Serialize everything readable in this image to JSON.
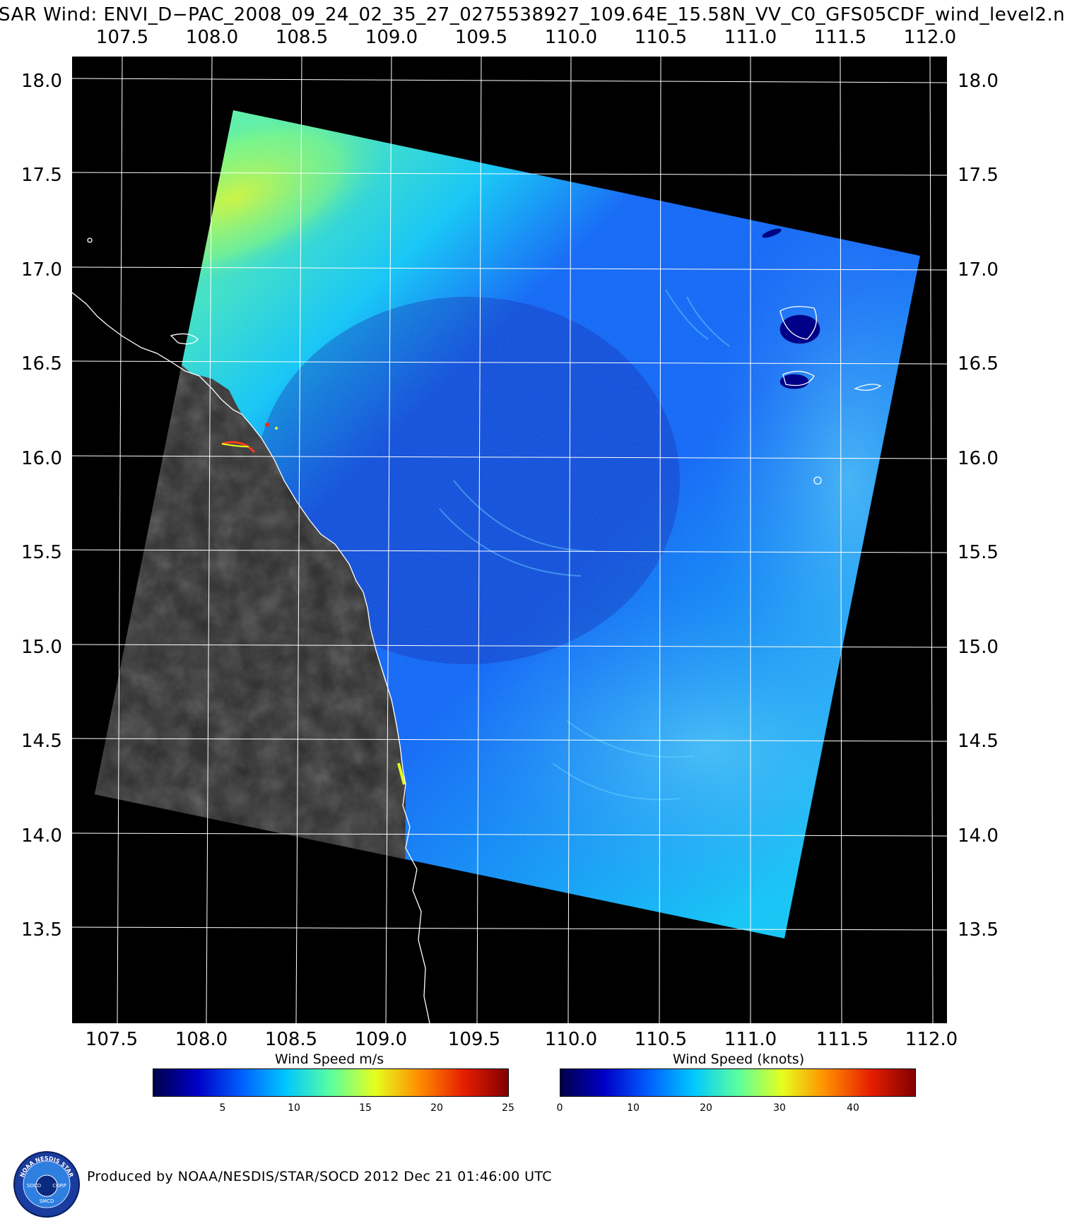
{
  "title": "SAR Wind: ENVI_D−PAC_2008_09_24_02_35_27_0275538927_109.64E_15.58N_VV_C0_GFS05CDF_wind_level2.n",
  "axes": {
    "lon_ticks": [
      "107.5",
      "108.0",
      "108.5",
      "109.0",
      "109.5",
      "110.0",
      "110.5",
      "111.0",
      "111.5",
      "112.0"
    ],
    "lat_ticks": [
      "18.0",
      "17.5",
      "17.0",
      "16.5",
      "16.0",
      "15.5",
      "15.0",
      "14.5",
      "14.0",
      "13.5"
    ],
    "lon_range": [
      107.3,
      112.2
    ],
    "lat_range": [
      18.2,
      13.0
    ]
  },
  "colorbars": [
    {
      "title": "Wind Speed m/s",
      "ticks": [
        "5",
        "10",
        "15",
        "20",
        "25"
      ],
      "range": [
        0,
        25
      ]
    },
    {
      "title": "Wind Speed (knots)",
      "ticks": [
        "0",
        "10",
        "20",
        "30",
        "40"
      ],
      "range": [
        0,
        48.6
      ]
    }
  ],
  "colors": {
    "colormap": [
      "#00004a",
      "#0000c8",
      "#0060ff",
      "#00c8ff",
      "#5affa0",
      "#e6ff1e",
      "#ff8c00",
      "#e61e00",
      "#820000"
    ],
    "land": "#2a2a2a",
    "background": "#000000",
    "grid": "#ffffff"
  },
  "logo": {
    "ring_text": "NOAA NESDIS STAR",
    "left": "SOCD",
    "right": "CORP",
    "bottom": "SMCD"
  },
  "credit": "Produced by NOAA/NESDIS/STAR/SOCD 2012 Dec 21 01:46:00 UTC"
}
